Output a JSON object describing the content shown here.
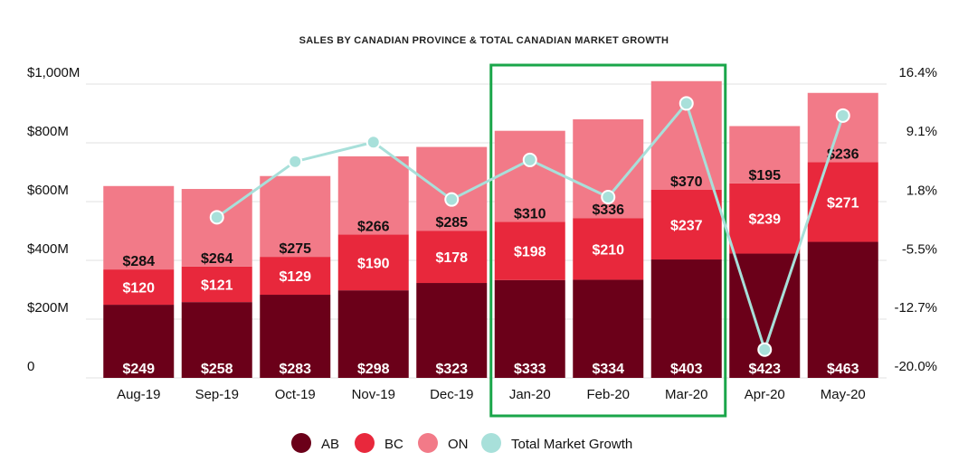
{
  "chart_data": {
    "type": "bar",
    "stacked": true,
    "title": "SALES BY CANADIAN PROVINCE & TOTAL CANADIAN MARKET GROWTH",
    "categories": [
      "Aug-19",
      "Sep-19",
      "Oct-19",
      "Nov-19",
      "Dec-19",
      "Jan-20",
      "Feb-20",
      "Mar-20",
      "Apr-20",
      "May-20"
    ],
    "series": [
      {
        "name": "AB",
        "color": "#6b0019",
        "values": [
          249,
          258,
          283,
          298,
          323,
          333,
          334,
          403,
          423,
          463
        ]
      },
      {
        "name": "BC",
        "color": "#e8283c",
        "values": [
          120,
          121,
          129,
          190,
          178,
          198,
          210,
          237,
          239,
          271
        ]
      },
      {
        "name": "ON",
        "color": "#f27a88",
        "values": [
          284,
          264,
          275,
          266,
          285,
          310,
          336,
          370,
          195,
          236
        ]
      }
    ],
    "line_series": {
      "name": "Total Market Growth",
      "color": "#a8e0da",
      "axis": "right",
      "values": [
        null,
        -0.1,
        6.8,
        9.2,
        2.1,
        7.0,
        2.4,
        14.0,
        -16.5,
        12.5
      ]
    },
    "value_labels": {
      "AB": [
        "$249",
        "$258",
        "$283",
        "$298",
        "$323",
        "$333",
        "$334",
        "$403",
        "$423",
        "$463"
      ],
      "BC": [
        "$120",
        "$121",
        "$129",
        "$190",
        "$178",
        "$198",
        "$210",
        "$237",
        "$239",
        "$271"
      ],
      "ON": [
        "$284",
        "$264",
        "$275",
        "$266",
        "$285",
        "$310",
        "$336",
        "$370",
        "$195",
        "$236"
      ]
    },
    "y_left": {
      "min": 0,
      "max": 1000,
      "ticks": [
        0,
        200,
        400,
        600,
        800,
        1000
      ],
      "tick_labels": [
        "0",
        "$200M",
        "$400M",
        "$600M",
        "$800M",
        "$1,000M"
      ]
    },
    "y_right": {
      "min": -20.0,
      "max": 16.4,
      "ticks": [
        -20.0,
        -12.7,
        -5.5,
        1.8,
        9.1,
        16.4
      ],
      "tick_labels": [
        "-20.0%",
        "-12.7%",
        "-5.5%",
        "1.8%",
        "9.1%",
        "16.4%"
      ]
    },
    "highlight": {
      "categories": [
        "Jan-20",
        "Feb-20",
        "Mar-20"
      ],
      "color": "#1aa64a"
    },
    "grid": true,
    "legend_position": "bottom"
  }
}
